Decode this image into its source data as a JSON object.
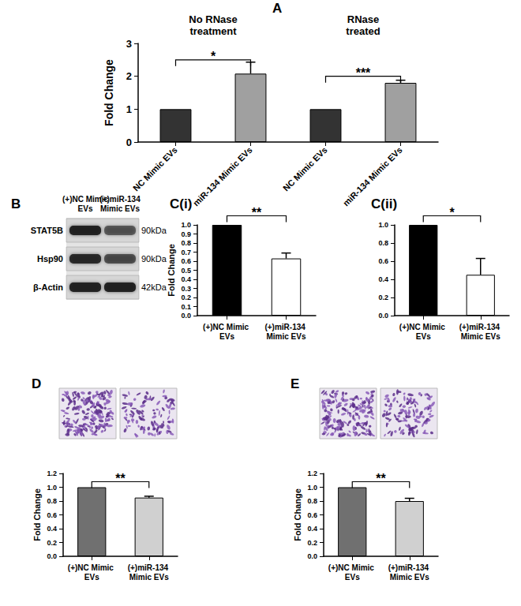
{
  "chart_data": [
    {
      "panel": "A",
      "type": "bar",
      "ylabel": "Fold Change",
      "categories": [
        "NC Mimic EVs",
        "miR-134 Mimic EVs",
        "NC Mimic EVs",
        "miR-134 Mimic EVs"
      ],
      "values": [
        1,
        2.08,
        1,
        1.8
      ],
      "errors": [
        null,
        0.35,
        null,
        0.08
      ],
      "colors": [
        "#333333",
        "#a0a0a0",
        "#333333",
        "#a0a0a0"
      ],
      "groups": [
        {
          "label": "No RNase\ntreatment",
          "from": 0,
          "to": 1
        },
        {
          "label": "RNase\ntreated",
          "from": 2,
          "to": 3
        }
      ],
      "significance": [
        {
          "from": 0,
          "to": 1,
          "y": 2.5,
          "label": "*"
        },
        {
          "from": 2,
          "to": 3,
          "y": 2.0,
          "label": "***"
        }
      ],
      "ylim": [
        0,
        3
      ],
      "yticks": [
        0,
        1,
        2,
        3
      ],
      "grid": false
    },
    {
      "panel": "C(i)",
      "type": "bar",
      "ylabel": "Fold Change",
      "categories": [
        "(+)NC Mimic EVs",
        "(+)miR-134 Mimic EVs"
      ],
      "values": [
        1.0,
        0.63
      ],
      "errors": [
        null,
        0.06
      ],
      "colors": [
        "#000000",
        "#ffffff"
      ],
      "significance": [
        {
          "from": 0,
          "to": 1,
          "y": 1.1,
          "label": "**"
        }
      ],
      "ylim": [
        0,
        1.0
      ],
      "yticks": [
        {
          "value": 0,
          "label": "0.0"
        },
        {
          "value": 0.1,
          "label": "0.1"
        },
        {
          "value": 0.2,
          "label": "0.2"
        },
        {
          "value": 0.3,
          "label": "0.3"
        },
        {
          "value": 0.4,
          "label": "0.4"
        },
        {
          "value": 0.5,
          "label": "0.5"
        },
        {
          "value": 0.6,
          "label": "0.6"
        },
        {
          "value": 0.7,
          "label": "0.7"
        },
        {
          "value": 0.8,
          "label": "0.8"
        },
        {
          "value": 0.9,
          "label": "0.9"
        },
        {
          "value": 1.0,
          "label": "1.0"
        }
      ],
      "grid": false
    },
    {
      "panel": "C(ii)",
      "type": "bar",
      "categories": [
        "(+)NC Mimic EVs",
        "(+)miR-134 Mimic EVs"
      ],
      "values": [
        1.0,
        0.45
      ],
      "errors": [
        null,
        0.18
      ],
      "colors": [
        "#000000",
        "#ffffff"
      ],
      "significance": [
        {
          "from": 0,
          "to": 1,
          "y": 1.1,
          "label": "*"
        }
      ],
      "ylim": [
        0,
        1.0
      ],
      "yticks": [
        {
          "value": 0,
          "label": "0.0"
        },
        {
          "value": 0.2,
          "label": "0.2"
        },
        {
          "value": 0.4,
          "label": "0.4"
        },
        {
          "value": 0.6,
          "label": "0.6"
        },
        {
          "value": 0.8,
          "label": "0.8"
        },
        {
          "value": 1.0,
          "label": "1.0"
        }
      ],
      "grid": false
    },
    {
      "panel": "D",
      "type": "bar",
      "ylabel": "Fold Change",
      "categories": [
        "(+)NC Mimic EVs",
        "(+)miR-134 Mimic EVs"
      ],
      "values": [
        1.0,
        0.85
      ],
      "errors": [
        null,
        0.02
      ],
      "colors": [
        "#707070",
        "#d0d0d0"
      ],
      "significance": [
        {
          "from": 0,
          "to": 1,
          "y": 1.08,
          "label": "**"
        }
      ],
      "ylim": [
        0,
        1.2
      ],
      "yticks": [
        {
          "value": 0,
          "label": "0.0"
        },
        {
          "value": 0.2,
          "label": "0.2"
        },
        {
          "value": 0.4,
          "label": "0.4"
        },
        {
          "value": 0.6,
          "label": "0.6"
        },
        {
          "value": 0.8,
          "label": "0.8"
        },
        {
          "value": 1.0,
          "label": "1.0"
        },
        {
          "value": 1.2,
          "label": "1.2"
        }
      ],
      "grid": false
    },
    {
      "panel": "E",
      "type": "bar",
      "ylabel": "Fold Change",
      "categories": [
        "(+)NC Mimic EVs",
        "(+)miR-134 Mimic EVs"
      ],
      "values": [
        1.0,
        0.8
      ],
      "errors": [
        null,
        0.04
      ],
      "colors": [
        "#707070",
        "#d0d0d0"
      ],
      "significance": [
        {
          "from": 0,
          "to": 1,
          "y": 1.08,
          "label": "**"
        }
      ],
      "ylim": [
        0,
        1.2
      ],
      "yticks": [
        {
          "value": 0,
          "label": "0.0"
        },
        {
          "value": 0.2,
          "label": "0.2"
        },
        {
          "value": 0.4,
          "label": "0.4"
        },
        {
          "value": 0.6,
          "label": "0.6"
        },
        {
          "value": 0.8,
          "label": "0.8"
        },
        {
          "value": 1.0,
          "label": "1.0"
        },
        {
          "value": 1.2,
          "label": "1.2"
        }
      ],
      "grid": false
    }
  ],
  "blot": {
    "panel": "B",
    "lanes": [
      "(+)NC Mimic\nEVs",
      "(+)miR-134\nMimic EVs"
    ],
    "rows": [
      {
        "label": "STAT5B",
        "size": "90kDa"
      },
      {
        "label": "Hsp90",
        "size": "90kDa"
      },
      {
        "label": "β-Actin",
        "size": "42kDa"
      }
    ]
  }
}
